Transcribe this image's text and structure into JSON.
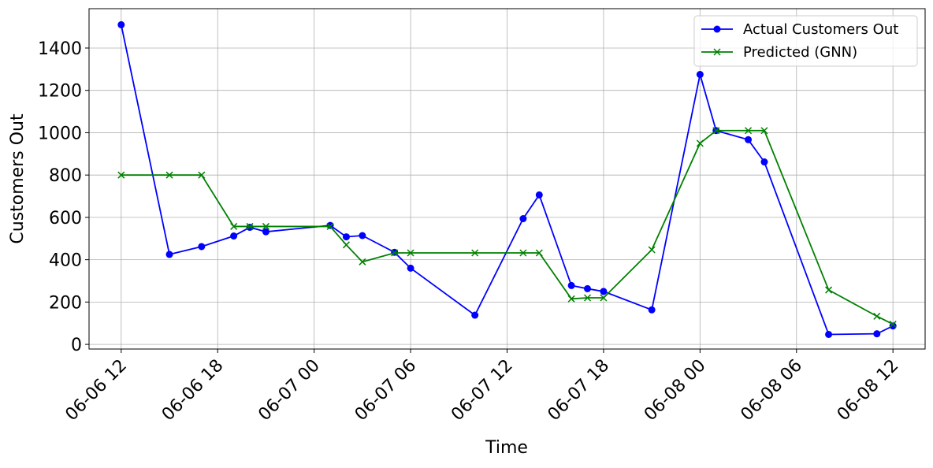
{
  "chart_data": {
    "type": "line",
    "x_label": "Time",
    "y_label": "Customers Out",
    "x": [
      "06-06 12",
      "06-06 15",
      "06-06 17",
      "06-06 19",
      "06-06 20",
      "06-06 21",
      "06-07 01",
      "06-07 02",
      "06-07 03",
      "06-07 05",
      "06-07 06",
      "06-07 10",
      "06-07 13",
      "06-07 14",
      "06-07 16",
      "06-07 17",
      "06-07 18",
      "06-07 21",
      "06-08 00",
      "06-08 01",
      "06-08 03",
      "06-08 04",
      "06-08 08",
      "06-08 11",
      "06-08 12"
    ],
    "series": [
      {
        "name": "Actual Customers Out",
        "color": "#0000ff",
        "marker": "circle",
        "values": [
          1510,
          425,
          462,
          512,
          553,
          532,
          562,
          508,
          514,
          435,
          360,
          138,
          594,
          706,
          278,
          263,
          250,
          163,
          1275,
          1010,
          967,
          862,
          47,
          50,
          87
        ]
      },
      {
        "name": "Predicted (GNN)",
        "color": "#008000",
        "marker": "x",
        "values": [
          800,
          800,
          800,
          557,
          557,
          557,
          557,
          470,
          390,
          432,
          432,
          432,
          432,
          432,
          215,
          220,
          220,
          447,
          950,
          1010,
          1010,
          1010,
          257,
          133,
          95
        ]
      }
    ],
    "xlim": [
      "06-06 10",
      "06-08 14"
    ],
    "xticks": [
      "06-06 12",
      "06-06 18",
      "06-07 00",
      "06-07 06",
      "06-07 12",
      "06-07 18",
      "06-08 00",
      "06-08 06",
      "06-08 12"
    ],
    "ylim": [
      -22,
      1586
    ],
    "yticks": [
      0,
      200,
      400,
      600,
      800,
      1000,
      1200,
      1400
    ],
    "grid": true,
    "legend": "upper right"
  }
}
